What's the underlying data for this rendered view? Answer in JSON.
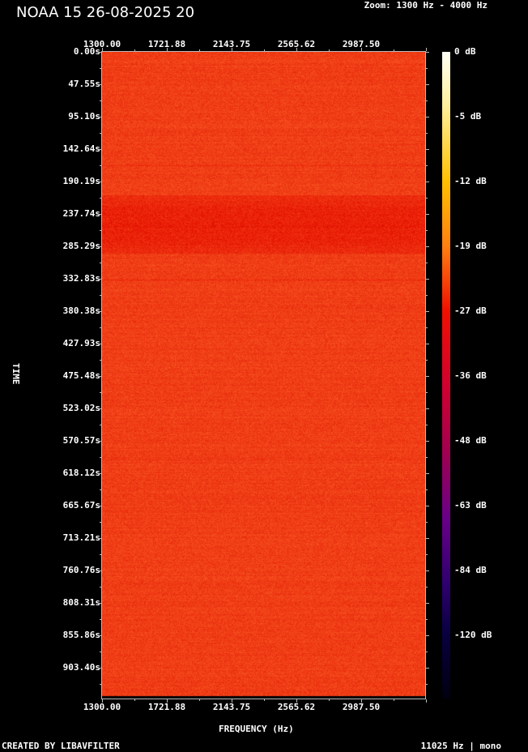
{
  "title": "NOAA 15 26-08-2025 20",
  "zoom_label": "Zoom: 1300 Hz - 4000 Hz",
  "footer_left": "CREATED BY LIBAVFILTER",
  "footer_right": "11025 Hz | mono",
  "chart_data": {
    "type": "heatmap",
    "xlabel": "FREQUENCY (Hz)",
    "ylabel": "TIME",
    "x_ticks": [
      "1300.00",
      "1721.88",
      "2143.75",
      "2565.62",
      "2987.50"
    ],
    "y_ticks": [
      "0.00s",
      "47.55s",
      "95.10s",
      "142.64s",
      "190.19s",
      "237.74s",
      "285.29s",
      "332.83s",
      "380.38s",
      "427.93s",
      "475.48s",
      "523.02s",
      "570.57s",
      "618.12s",
      "665.67s",
      "713.21s",
      "760.76s",
      "808.31s",
      "855.86s",
      "903.40s"
    ],
    "colorbar_ticks": [
      "0 dB",
      "-5 dB",
      "-12 dB",
      "-19 dB",
      "-27 dB",
      "-36 dB",
      "-48 dB",
      "-63 dB",
      "-84 dB",
      "-120 dB"
    ],
    "colormap": [
      "#fffff6",
      "#ffc000",
      "#f01000",
      "#a00050",
      "#300070",
      "#000010"
    ],
    "dominant_color": "#f03c14",
    "band_color": "#e82008",
    "band_time_range_s": [
      190.19,
      285.29
    ]
  }
}
